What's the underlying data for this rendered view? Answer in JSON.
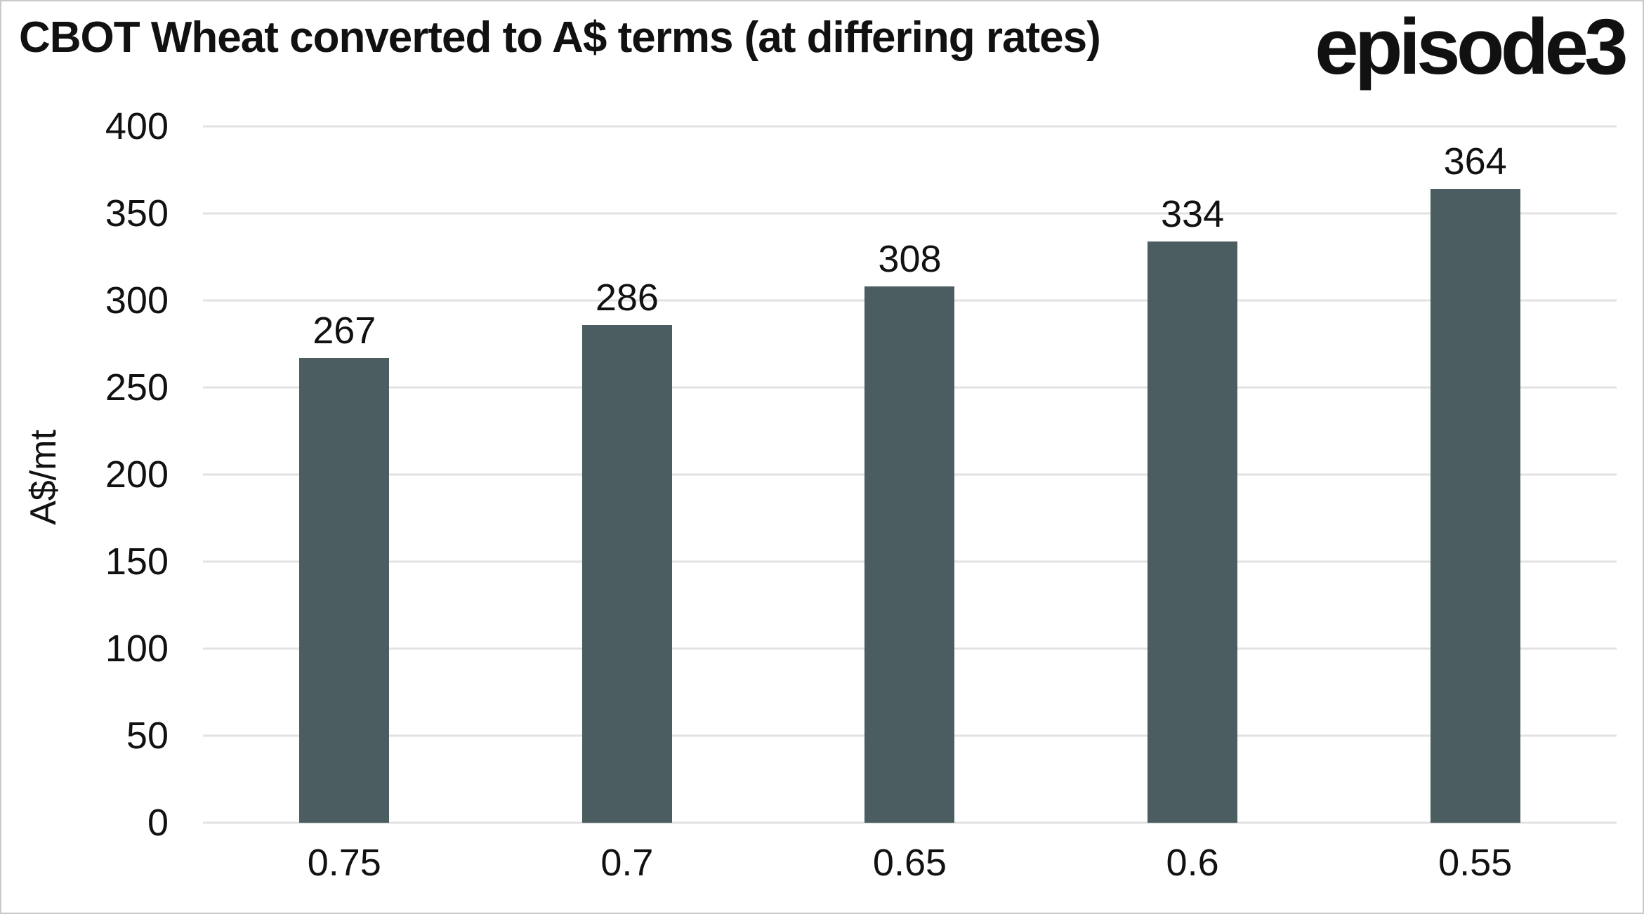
{
  "header": {
    "title": "CBOT Wheat converted to A$ terms (at differing rates)",
    "logo": "episode3"
  },
  "chart_data": {
    "type": "bar",
    "title": "CBOT Wheat converted to A$ terms (at differing rates)",
    "categories": [
      "0.75",
      "0.7",
      "0.65",
      "0.6",
      "0.55"
    ],
    "values": [
      267,
      286,
      308,
      334,
      364
    ],
    "bar_labels": [
      267,
      286,
      308,
      334,
      364
    ],
    "xlabel": "",
    "ylabel": "A$/mt",
    "ylim": [
      0,
      400
    ],
    "yticks": [
      400,
      350,
      300,
      250,
      200,
      150,
      100,
      50,
      0
    ],
    "grid": true,
    "legend_position": "none"
  },
  "colors": {
    "bar": "#4b5d60",
    "gridline": "#e2e2e2",
    "text": "#111111",
    "page_border": "#c9c9c9",
    "background": "#ffffff"
  }
}
